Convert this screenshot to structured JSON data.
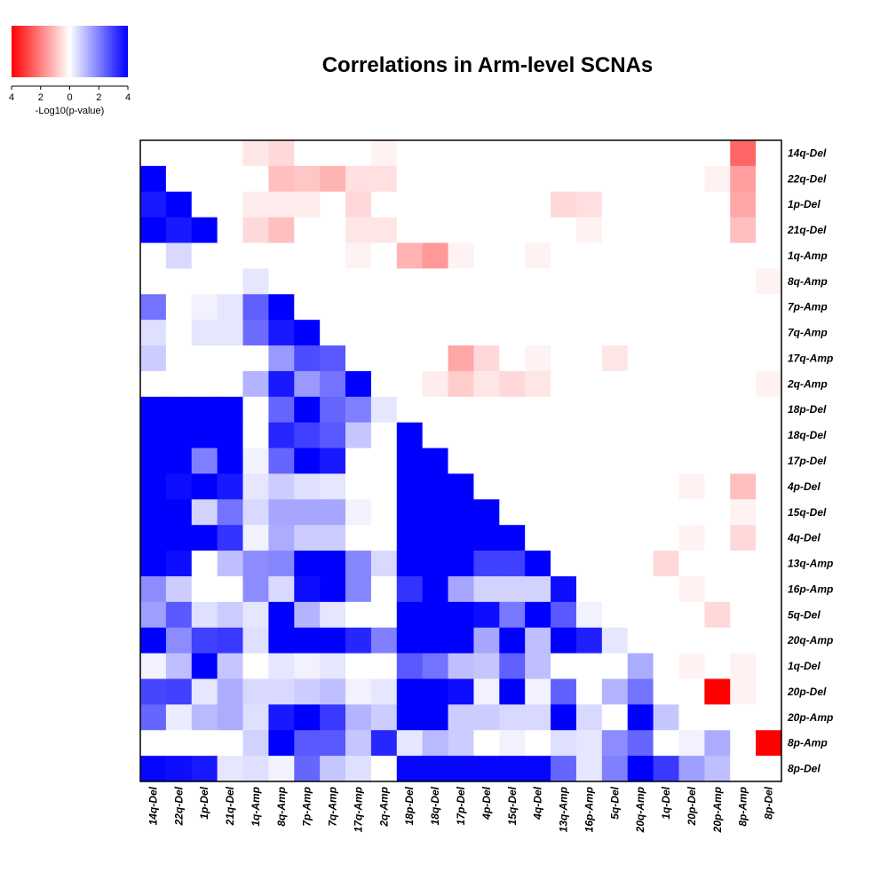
{
  "chart_data": {
    "type": "heatmap",
    "title": "Correlations in Arm-level SCNAs",
    "colorbar": {
      "label": "-Log10(p-value)",
      "ticks": [
        "4",
        "2",
        "0",
        "2",
        "4"
      ],
      "range": [
        -4,
        4
      ],
      "low_color": "#ff0000",
      "mid_color": "#ffffff",
      "high_color": "#0000ff"
    },
    "x_labels": [
      "14q-Del",
      "22q-Del",
      "1p-Del",
      "21q-Del",
      "1q-Amp",
      "8q-Amp",
      "7p-Amp",
      "7q-Amp",
      "17q-Amp",
      "2q-Amp",
      "18p-Del",
      "18q-Del",
      "17p-Del",
      "4p-Del",
      "15q-Del",
      "4q-Del",
      "13q-Amp",
      "16p-Amp",
      "5q-Del",
      "20q-Amp",
      "1q-Del",
      "20p-Del",
      "20p-Amp",
      "8p-Amp",
      "8p-Del"
    ],
    "y_labels": [
      "14q-Del",
      "22q-Del",
      "1p-Del",
      "21q-Del",
      "1q-Amp",
      "8q-Amp",
      "7p-Amp",
      "7q-Amp",
      "17q-Amp",
      "2q-Amp",
      "18p-Del",
      "18q-Del",
      "17p-Del",
      "4p-Del",
      "15q-Del",
      "4q-Del",
      "13q-Amp",
      "16p-Amp",
      "5q-Del",
      "20q-Amp",
      "1q-Del",
      "20p-Del",
      "20p-Amp",
      "8p-Amp",
      "8p-Del"
    ],
    "values": [
      [
        0,
        0,
        0,
        0,
        -0.4,
        -0.6,
        0,
        0,
        0,
        -0.2,
        0,
        0,
        0,
        0,
        0,
        0,
        0,
        0,
        0,
        0,
        0,
        0,
        0,
        -2.4,
        0
      ],
      [
        4,
        0,
        0,
        0,
        0,
        -1,
        -0.9,
        -1.2,
        -0.5,
        -0.5,
        0,
        0,
        0,
        0,
        0,
        0,
        0,
        0,
        0,
        0,
        0,
        0,
        -0.2,
        -1.5,
        0
      ],
      [
        3.6,
        4,
        0,
        0,
        -0.3,
        -0.3,
        -0.3,
        0,
        -0.6,
        0,
        0,
        0,
        0,
        0,
        0,
        0,
        -0.6,
        -0.5,
        0,
        0,
        0,
        0,
        0,
        -1.4,
        0
      ],
      [
        4,
        3.6,
        4,
        0,
        -0.6,
        -1,
        0,
        0,
        -0.4,
        -0.4,
        0,
        0,
        0,
        0,
        0,
        0,
        0,
        -0.2,
        0,
        0,
        0,
        0,
        0,
        -1,
        0
      ],
      [
        0,
        0.6,
        0,
        0,
        0,
        0,
        0,
        0,
        -0.2,
        0,
        -1.2,
        -1.6,
        -0.2,
        0,
        0,
        -0.2,
        0,
        0,
        0,
        0,
        0,
        0,
        0,
        0,
        0
      ],
      [
        0,
        0,
        0,
        0,
        0.4,
        0,
        0,
        0,
        0,
        0,
        0,
        0,
        0,
        0,
        0,
        0,
        0,
        0,
        0,
        0,
        0,
        0,
        0,
        0,
        -0.2
      ],
      [
        2.2,
        0,
        0.2,
        0.4,
        2.5,
        4,
        0,
        0,
        0,
        0,
        0,
        0,
        0,
        0,
        0,
        0,
        0,
        0,
        0,
        0,
        0,
        0,
        0,
        0,
        0
      ],
      [
        0.5,
        0,
        0.4,
        0.4,
        2.3,
        3.6,
        4,
        0,
        0,
        0,
        0,
        0,
        0,
        0,
        0,
        0,
        0,
        0,
        0,
        0,
        0,
        0,
        0,
        0,
        0
      ],
      [
        0.8,
        0,
        0,
        0,
        0,
        1.6,
        2.8,
        2.6,
        0,
        0,
        0,
        0,
        -1.4,
        -0.6,
        0,
        -0.2,
        0,
        0,
        -0.4,
        0,
        0,
        0,
        0,
        0,
        0
      ],
      [
        0,
        0,
        0,
        0,
        1.2,
        3.6,
        1.6,
        2.2,
        4,
        0,
        0,
        -0.3,
        -0.8,
        -0.4,
        -0.6,
        -0.4,
        0,
        0,
        0,
        0,
        0,
        0,
        0,
        0,
        -0.2
      ],
      [
        4,
        4,
        4,
        4,
        0,
        2.4,
        4,
        2.4,
        2,
        0.4,
        0,
        0,
        0,
        0,
        0,
        0,
        0,
        0,
        0,
        0,
        0,
        0,
        0,
        0,
        0
      ],
      [
        4,
        4,
        4,
        4,
        0,
        3.4,
        3,
        2.6,
        0.9,
        0,
        4,
        0,
        0,
        0,
        0,
        0,
        0,
        0,
        0,
        0,
        0,
        0,
        0,
        0,
        0
      ],
      [
        4,
        4,
        2,
        4,
        0.2,
        2.4,
        4,
        3.6,
        0,
        0,
        4,
        4,
        0,
        0,
        0,
        0,
        0,
        0,
        0,
        0,
        0,
        0,
        0,
        0,
        0
      ],
      [
        4,
        3.8,
        4,
        3.6,
        0.4,
        0.8,
        0.5,
        0.4,
        0,
        0,
        4,
        4,
        4,
        0,
        0,
        0,
        0,
        0,
        0,
        0,
        0,
        -0.2,
        0,
        -1,
        0
      ],
      [
        4,
        4,
        0.7,
        2.2,
        0.6,
        1.4,
        1.4,
        1.4,
        0.2,
        0,
        4,
        4,
        4,
        4,
        0,
        0,
        0,
        0,
        0,
        0,
        0,
        0,
        0,
        -0.2,
        0
      ],
      [
        4,
        4,
        4,
        3.2,
        0.2,
        1.3,
        0.8,
        0.8,
        0,
        0,
        4,
        4,
        4,
        4,
        4,
        0,
        0,
        0,
        0,
        0,
        0,
        -0.2,
        0,
        -0.6,
        0
      ],
      [
        4,
        3.8,
        0,
        1,
        1.8,
        1.9,
        4,
        4,
        1.9,
        0.6,
        4,
        4,
        4,
        3,
        3,
        4,
        0,
        0,
        0,
        0,
        -0.6,
        0,
        0,
        0,
        0
      ],
      [
        1.8,
        0.8,
        0,
        0,
        1.8,
        0.6,
        3.8,
        4,
        1.9,
        0,
        3.2,
        4,
        1.4,
        0.7,
        0.7,
        0.7,
        3.8,
        0,
        0,
        0,
        0,
        -0.2,
        0,
        0,
        0
      ],
      [
        1.5,
        2.6,
        0.5,
        0.8,
        0.4,
        4,
        1.2,
        0.4,
        0,
        0,
        4,
        4,
        4,
        3.8,
        2.1,
        4,
        2.6,
        0.2,
        0,
        0,
        0,
        0,
        -0.6,
        0,
        0
      ],
      [
        4,
        1.8,
        3,
        3.1,
        0.5,
        4,
        4,
        4,
        3.4,
        2,
        4,
        4,
        4,
        1.4,
        4,
        1,
        4,
        3.5,
        0.4,
        0,
        0,
        0,
        0,
        0,
        0
      ],
      [
        0.2,
        1,
        4,
        0.9,
        0,
        0.4,
        0.2,
        0.4,
        0,
        0,
        2.6,
        2.2,
        1,
        0.9,
        2.5,
        1,
        0,
        0,
        0,
        1.3,
        0,
        -0.2,
        0,
        -0.2,
        0
      ],
      [
        2.9,
        3,
        0.4,
        1.3,
        0.6,
        0.6,
        0.8,
        1,
        0.2,
        0.4,
        4,
        4,
        3.8,
        0.2,
        4,
        0.2,
        2.5,
        0,
        1.2,
        2.2,
        0,
        0,
        -4,
        -0.2,
        0
      ],
      [
        2.4,
        0.3,
        1.1,
        1.3,
        0.5,
        3.6,
        4,
        3.1,
        1.2,
        0.8,
        4,
        4,
        0.8,
        0.8,
        0.6,
        0.6,
        4,
        0.6,
        0,
        4,
        0.9,
        0,
        0,
        0,
        0
      ],
      [
        0,
        0,
        0,
        0,
        0.7,
        4,
        2.6,
        2.6,
        0.9,
        3.4,
        0.4,
        1.1,
        0.8,
        0,
        0.2,
        0,
        0.5,
        0.4,
        1.8,
        2.4,
        0,
        0.2,
        1.3,
        0,
        -4
      ],
      [
        3.9,
        3.8,
        3.6,
        0.4,
        0.5,
        0.2,
        2.4,
        0.9,
        0.5,
        0,
        3.9,
        3.9,
        3.9,
        3.9,
        3.9,
        3.9,
        2.4,
        0.4,
        2,
        4,
        3.1,
        1.5,
        1,
        0,
        0
      ]
    ]
  }
}
